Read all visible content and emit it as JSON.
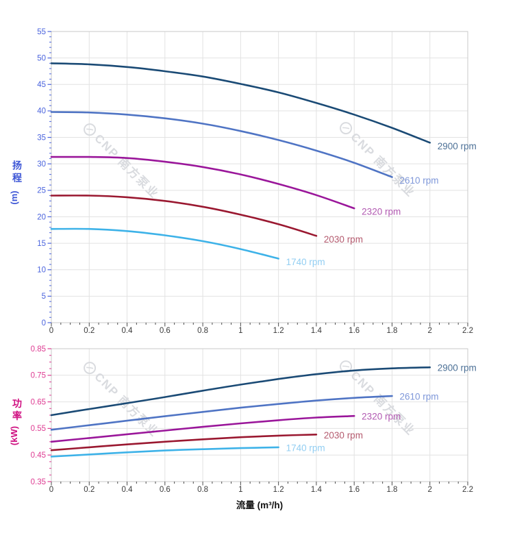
{
  "style": {
    "background": "#ffffff",
    "grid_color": "#e2e2e2",
    "spine_color": "#c9c9c9",
    "x_tick_color": "#4a4a4a",
    "x_tick_label_color": "#3a3a3a",
    "x_axis_title_color": "#111111"
  },
  "watermark": {
    "logo_icon": "cnp-circle-logo",
    "text": "CNP 南方泵业",
    "color": "#d9dbdf"
  },
  "chart_data": [
    {
      "type": "line",
      "name": "head-curves-chart",
      "title": "",
      "ylabel": "扬程",
      "yunit": "(m)",
      "xlabel": "",
      "xlim": [
        0,
        2.2
      ],
      "ylim": [
        0,
        55
      ],
      "grid": true,
      "legend_position": "curve-end-labels",
      "xtick_values": [
        0,
        0.2,
        0.4,
        0.6,
        0.8,
        1.0,
        1.2,
        1.4,
        1.6,
        1.8,
        2.0,
        2.2
      ],
      "xtick_labels": [
        "0",
        "0.2",
        "0.4",
        "0.6",
        "0.8",
        "1",
        "1.2",
        "1.4",
        "1.6",
        "1.8",
        "2",
        "2.2"
      ],
      "ytick_values": [
        0,
        5,
        10,
        15,
        20,
        25,
        30,
        35,
        40,
        45,
        50,
        55
      ],
      "ytick_labels": [
        "0",
        "5",
        "10",
        "15",
        "20",
        "25",
        "30",
        "35",
        "40",
        "45",
        "50",
        "55"
      ],
      "x_minor_step": 0.05,
      "y_minor_step": 1,
      "axis_color": "#4a63dd",
      "axis_title_color": "#3d56d6",
      "series": [
        {
          "name": "2900 rpm",
          "color": "#1a4a75",
          "label_color": "#4c7096",
          "x": [
            0,
            0.2,
            0.4,
            0.6,
            0.8,
            1.0,
            1.2,
            1.4,
            1.6,
            1.8,
            2.0
          ],
          "y": [
            49.0,
            48.8,
            48.3,
            47.5,
            46.5,
            45.1,
            43.5,
            41.5,
            39.3,
            36.8,
            34.0
          ]
        },
        {
          "name": "2610 rpm",
          "color": "#4f74c4",
          "label_color": "#7e97d9",
          "x": [
            0,
            0.2,
            0.4,
            0.6,
            0.8,
            1.0,
            1.2,
            1.4,
            1.6,
            1.8
          ],
          "y": [
            39.8,
            39.7,
            39.3,
            38.6,
            37.6,
            36.2,
            34.5,
            32.5,
            30.2,
            27.5
          ]
        },
        {
          "name": "2320 rpm",
          "color": "#9a169a",
          "label_color": "#b159b1",
          "x": [
            0,
            0.2,
            0.4,
            0.6,
            0.8,
            1.0,
            1.2,
            1.4,
            1.6
          ],
          "y": [
            31.3,
            31.3,
            31.1,
            30.4,
            29.4,
            28.0,
            26.2,
            24.1,
            21.6
          ]
        },
        {
          "name": "2030 rpm",
          "color": "#9a1830",
          "label_color": "#b45a6e",
          "x": [
            0,
            0.2,
            0.4,
            0.6,
            0.8,
            1.0,
            1.2,
            1.4
          ],
          "y": [
            24.0,
            24.0,
            23.7,
            23.0,
            21.9,
            20.4,
            18.6,
            16.4
          ]
        },
        {
          "name": "1740 rpm",
          "color": "#3db2e8",
          "label_color": "#92cef2",
          "x": [
            0,
            0.2,
            0.4,
            0.6,
            0.8,
            1.0,
            1.2
          ],
          "y": [
            17.7,
            17.7,
            17.3,
            16.5,
            15.4,
            13.9,
            12.1
          ]
        }
      ]
    },
    {
      "type": "line",
      "name": "power-curves-chart",
      "title": "",
      "ylabel": "功率",
      "yunit": "(kW)",
      "xlabel": "流量 (m³/h)",
      "xlim": [
        0,
        2.2
      ],
      "ylim": [
        0.35,
        0.85
      ],
      "grid": true,
      "legend_position": "curve-end-labels",
      "xtick_values": [
        0,
        0.2,
        0.4,
        0.6,
        0.8,
        1.0,
        1.2,
        1.4,
        1.6,
        1.8,
        2.0,
        2.2
      ],
      "xtick_labels": [
        "0",
        "0.2",
        "0.4",
        "0.6",
        "0.8",
        "1",
        "1.2",
        "1.4",
        "1.6",
        "1.8",
        "2",
        "2.2"
      ],
      "ytick_values": [
        0.35,
        0.45,
        0.55,
        0.65,
        0.75,
        0.85
      ],
      "ytick_labels": [
        "0.35",
        "0.45",
        "0.55",
        "0.65",
        "0.75",
        "0.85"
      ],
      "x_minor_step": 0.05,
      "y_minor_step": 0.025,
      "axis_color": "#de3b92",
      "axis_title_color": "#cf0e80",
      "series": [
        {
          "name": "2900 rpm",
          "color": "#1a4a75",
          "label_color": "#4c7096",
          "x": [
            0,
            0.2,
            0.4,
            0.6,
            0.8,
            1.0,
            1.2,
            1.4,
            1.6,
            1.8,
            2.0
          ],
          "y": [
            0.6,
            0.623,
            0.645,
            0.668,
            0.692,
            0.715,
            0.736,
            0.754,
            0.768,
            0.776,
            0.78
          ]
        },
        {
          "name": "2610 rpm",
          "color": "#4f74c4",
          "label_color": "#7e97d9",
          "x": [
            0,
            0.2,
            0.4,
            0.6,
            0.8,
            1.0,
            1.2,
            1.4,
            1.6,
            1.8
          ],
          "y": [
            0.545,
            0.562,
            0.579,
            0.596,
            0.612,
            0.628,
            0.642,
            0.655,
            0.665,
            0.672
          ]
        },
        {
          "name": "2320 rpm",
          "color": "#9a169a",
          "label_color": "#b159b1",
          "x": [
            0,
            0.2,
            0.4,
            0.6,
            0.8,
            1.0,
            1.2,
            1.4,
            1.6
          ],
          "y": [
            0.5,
            0.514,
            0.528,
            0.542,
            0.556,
            0.569,
            0.581,
            0.591,
            0.597
          ]
        },
        {
          "name": "2030 rpm",
          "color": "#9a1830",
          "label_color": "#b45a6e",
          "x": [
            0,
            0.2,
            0.4,
            0.6,
            0.8,
            1.0,
            1.2,
            1.4
          ],
          "y": [
            0.468,
            0.479,
            0.49,
            0.5,
            0.509,
            0.517,
            0.523,
            0.527
          ]
        },
        {
          "name": "1740 rpm",
          "color": "#3db2e8",
          "label_color": "#92cef2",
          "x": [
            0,
            0.2,
            0.4,
            0.6,
            0.8,
            1.0,
            1.2
          ],
          "y": [
            0.444,
            0.452,
            0.46,
            0.467,
            0.472,
            0.476,
            0.479
          ]
        }
      ]
    }
  ]
}
